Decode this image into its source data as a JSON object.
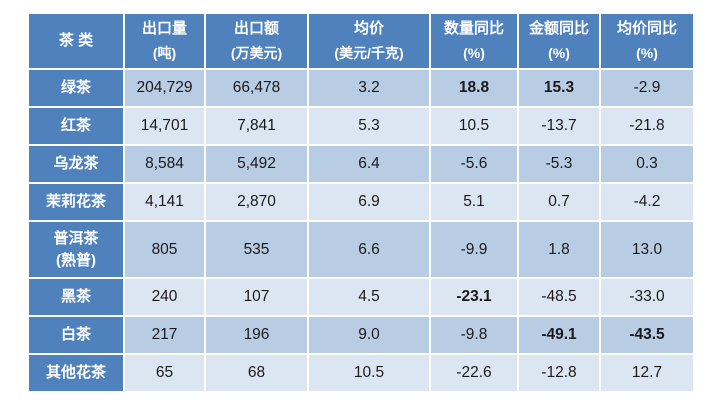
{
  "colors": {
    "header_bg": "#4f81bd",
    "band_dark": "#b8cce4",
    "band_light": "#dce6f2",
    "grid": "#ffffff",
    "header_text": "#ffffff",
    "cell_text": "#1a1a1a"
  },
  "chart_data": {
    "type": "table",
    "columns": [
      {
        "title": "茶 类",
        "unit": ""
      },
      {
        "title": "出口量",
        "unit": "(吨)"
      },
      {
        "title": "出口额",
        "unit": "(万美元)"
      },
      {
        "title": "均价",
        "unit": "(美元/千克)"
      },
      {
        "title": "数量同比",
        "unit": "(%)"
      },
      {
        "title": "金额同比",
        "unit": "(%)"
      },
      {
        "title": "均价同比",
        "unit": "(%)"
      }
    ],
    "rows": [
      {
        "category": "绿茶",
        "values": [
          "204,729",
          "66,478",
          "3.2",
          "18.8",
          "15.3",
          "-2.9"
        ],
        "bold": [
          0,
          0,
          0,
          1,
          1,
          0
        ]
      },
      {
        "category": "红茶",
        "values": [
          "14,701",
          "7,841",
          "5.3",
          "10.5",
          "-13.7",
          "-21.8"
        ],
        "bold": [
          0,
          0,
          0,
          0,
          0,
          0
        ]
      },
      {
        "category": "乌龙茶",
        "values": [
          "8,584",
          "5,492",
          "6.4",
          "-5.6",
          "-5.3",
          "0.3"
        ],
        "bold": [
          0,
          0,
          0,
          0,
          0,
          0
        ]
      },
      {
        "category": "茉莉花茶",
        "values": [
          "4,141",
          "2,870",
          "6.9",
          "5.1",
          "0.7",
          "-4.2"
        ],
        "bold": [
          0,
          0,
          0,
          0,
          0,
          0
        ]
      },
      {
        "category": "普洱茶\n(熟普)",
        "values": [
          "805",
          "535",
          "6.6",
          "-9.9",
          "1.8",
          "13.0"
        ],
        "bold": [
          0,
          0,
          0,
          0,
          0,
          0
        ]
      },
      {
        "category": "黑茶",
        "values": [
          "240",
          "107",
          "4.5",
          "-23.1",
          "-48.5",
          "-33.0"
        ],
        "bold": [
          0,
          0,
          0,
          1,
          0,
          0
        ]
      },
      {
        "category": "白茶",
        "values": [
          "217",
          "196",
          "9.0",
          "-9.8",
          "-49.1",
          "-43.5"
        ],
        "bold": [
          0,
          0,
          0,
          0,
          1,
          1
        ]
      },
      {
        "category": "其他花茶",
        "values": [
          "65",
          "68",
          "10.5",
          "-22.6",
          "-12.8",
          "12.7"
        ],
        "bold": [
          0,
          0,
          0,
          0,
          0,
          0
        ]
      }
    ]
  }
}
